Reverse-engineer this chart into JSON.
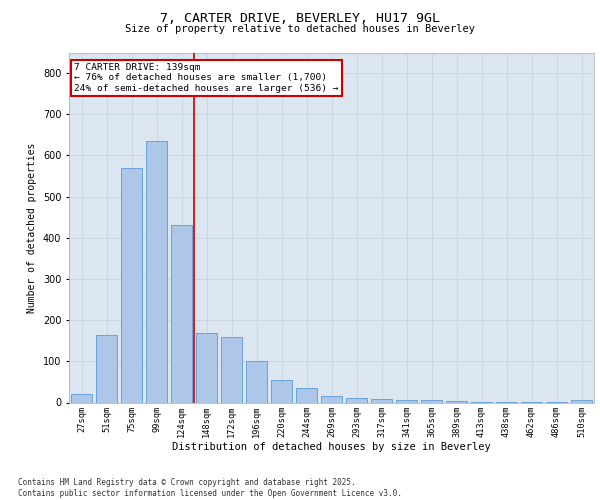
{
  "title1": "7, CARTER DRIVE, BEVERLEY, HU17 9GL",
  "title2": "Size of property relative to detached houses in Beverley",
  "xlabel": "Distribution of detached houses by size in Beverley",
  "ylabel": "Number of detached properties",
  "bar_labels": [
    "27sqm",
    "51sqm",
    "75sqm",
    "99sqm",
    "124sqm",
    "148sqm",
    "172sqm",
    "196sqm",
    "220sqm",
    "244sqm",
    "269sqm",
    "293sqm",
    "317sqm",
    "341sqm",
    "365sqm",
    "389sqm",
    "413sqm",
    "438sqm",
    "462sqm",
    "486sqm",
    "510sqm"
  ],
  "bar_values": [
    20,
    165,
    570,
    635,
    430,
    170,
    160,
    102,
    55,
    35,
    15,
    10,
    8,
    5,
    5,
    3,
    2,
    2,
    1,
    1,
    5
  ],
  "bar_color": "#aec6e8",
  "bar_edge_color": "#5b9bd5",
  "grid_color": "#c8d4e3",
  "bg_color": "#dce6f0",
  "vline_x": 4.5,
  "vline_color": "#cc0000",
  "annotation_title": "7 CARTER DRIVE: 139sqm",
  "annotation_line1": "← 76% of detached houses are smaller (1,700)",
  "annotation_line2": "24% of semi-detached houses are larger (536) →",
  "annotation_box_color": "#ffffff",
  "annotation_border_color": "#cc0000",
  "footer1": "Contains HM Land Registry data © Crown copyright and database right 2025.",
  "footer2": "Contains public sector information licensed under the Open Government Licence v3.0.",
  "ylim": [
    0,
    850
  ],
  "yticks": [
    0,
    100,
    200,
    300,
    400,
    500,
    600,
    700,
    800
  ]
}
